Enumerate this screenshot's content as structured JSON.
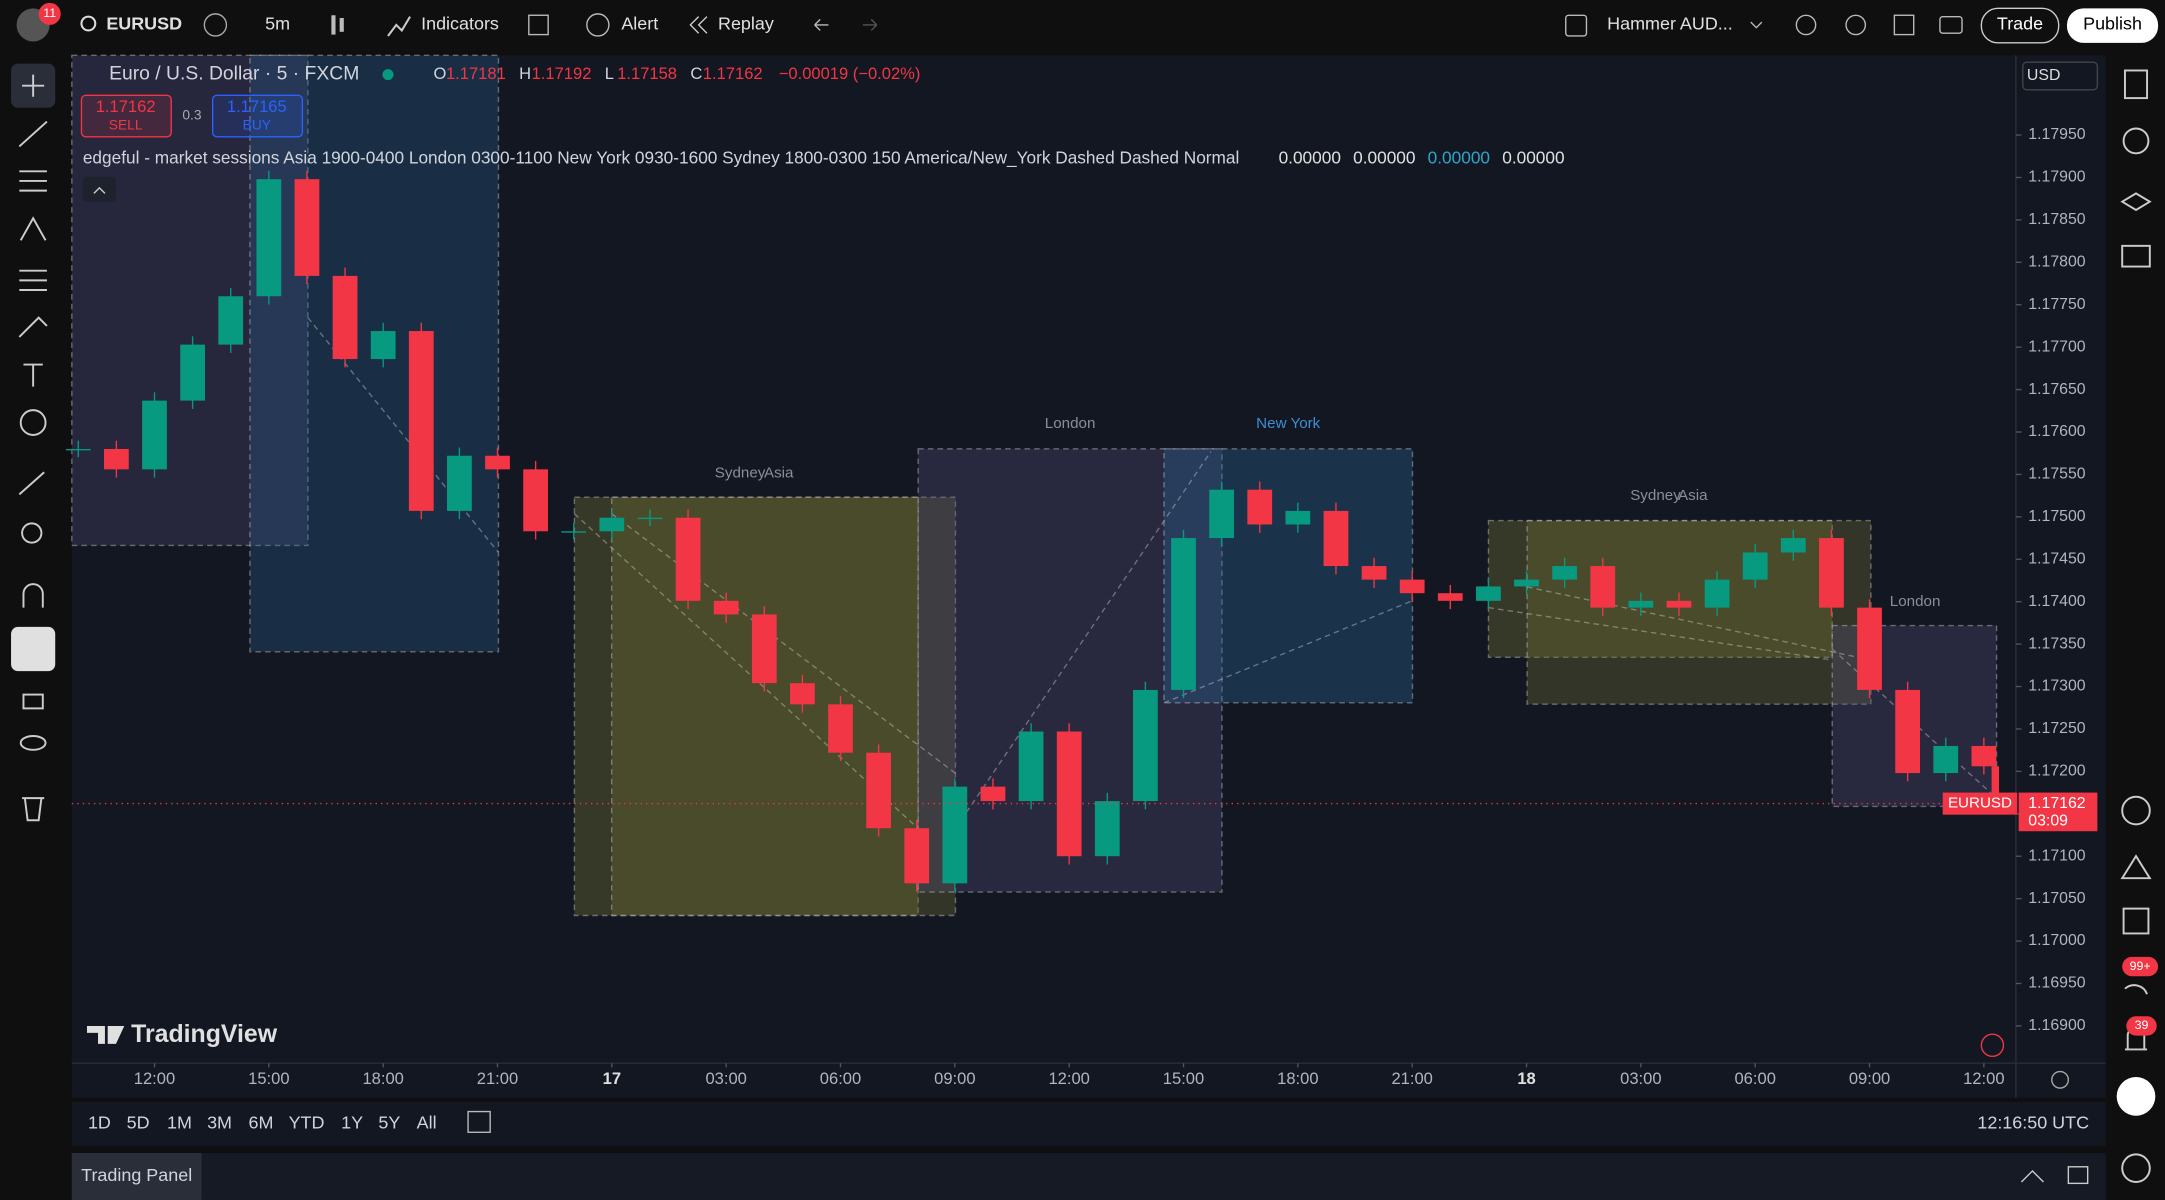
{
  "top_bar": {
    "badge": "11",
    "symbol": "EURUSD",
    "interval": "5m",
    "indicators": "Indicators",
    "alert": "Alert",
    "replay": "Replay",
    "layout": "Hammer AUD...",
    "trade": "Trade",
    "publish": "Publish"
  },
  "legend": {
    "title": "Euro / U.S. Dollar · 5 · FXCM",
    "o_label": "O",
    "open": "1.17181",
    "h_label": "H",
    "high": "1.17192",
    "l_label": "L",
    "low": "1.17158",
    "c_label": "C",
    "close": "1.17162",
    "change": "−0.00019 (−0.02%)"
  },
  "trade_box": {
    "sell_price": "1.17162",
    "sell": "SELL",
    "spread": "0.3",
    "buy_price": "1.17165",
    "buy": "BUY"
  },
  "indicator": {
    "text": "edgeful - market sessions Asia 1900-0400 London 0300-1100 New York 0930-1600 Sydney 1800-0300 150 America/New_York Dashed Dashed Normal",
    "values": [
      "0.00000",
      "0.00000",
      "0.00000",
      "0.00000"
    ]
  },
  "chart": {
    "type": "candlestick",
    "x": [
      10,
      11,
      12,
      13,
      14,
      15,
      16,
      17,
      18,
      19,
      20,
      21,
      22,
      23,
      24,
      25,
      26,
      27,
      28,
      29,
      30,
      31,
      32,
      33,
      34,
      35,
      36,
      37,
      38,
      39,
      40,
      41,
      42,
      43,
      44,
      45,
      46,
      47,
      48,
      49,
      50,
      51,
      52,
      53,
      54,
      55,
      56,
      57,
      58,
      59,
      60,
      60.3
    ],
    "close": [
      1.1758,
      1.17556,
      1.17637,
      1.17703,
      1.1776,
      1.17898,
      1.17784,
      1.17686,
      1.17719,
      1.17507,
      1.17572,
      1.17556,
      1.17483,
      1.17483,
      1.17499,
      1.17499,
      1.17401,
      1.17385,
      1.17304,
      1.17279,
      1.17222,
      1.17133,
      1.17068,
      1.17182,
      1.17165,
      1.17247,
      1.171,
      1.17165,
      1.17296,
      1.17475,
      1.17532,
      1.17491,
      1.17507,
      1.17442,
      1.17426,
      1.1741,
      1.17401,
      1.17418,
      1.17426,
      1.17442,
      1.17393,
      1.17401,
      1.17393,
      1.17426,
      1.17458,
      1.17475,
      1.17393,
      1.17296,
      1.17198,
      1.1723,
      1.17206,
      1.17162
    ],
    "xlim": [
      9.83,
      60.84
    ],
    "ylim": [
      1.16856,
      1.18044
    ],
    "yticks": [
      {
        "value": 1.169,
        "label": "1.16900"
      },
      {
        "value": 1.1695,
        "label": "1.16950"
      },
      {
        "value": 1.17,
        "label": "1.17000"
      },
      {
        "value": 1.1705,
        "label": "1.17050"
      },
      {
        "value": 1.171,
        "label": "1.17100"
      },
      {
        "value": 1.1715,
        "label": "1.17150"
      },
      {
        "value": 1.172,
        "label": "1.17200"
      },
      {
        "value": 1.1725,
        "label": "1.17250"
      },
      {
        "value": 1.173,
        "label": "1.17300"
      },
      {
        "value": 1.1735,
        "label": "1.17350"
      },
      {
        "value": 1.174,
        "label": "1.17400"
      },
      {
        "value": 1.1745,
        "label": "1.17450"
      },
      {
        "value": 1.175,
        "label": "1.17500"
      },
      {
        "value": 1.1755,
        "label": "1.17550"
      },
      {
        "value": 1.176,
        "label": "1.17600"
      },
      {
        "value": 1.1765,
        "label": "1.17650"
      },
      {
        "value": 1.177,
        "label": "1.17700"
      },
      {
        "value": 1.1775,
        "label": "1.17750"
      },
      {
        "value": 1.178,
        "label": "1.17800"
      },
      {
        "value": 1.1785,
        "label": "1.17850"
      },
      {
        "value": 1.179,
        "label": "1.17900"
      },
      {
        "value": 1.1795,
        "label": "1.17950"
      }
    ],
    "xticks": [
      {
        "value": 12,
        "label": "12:00"
      },
      {
        "value": 15,
        "label": "15:00"
      },
      {
        "value": 18,
        "label": "18:00"
      },
      {
        "value": 21,
        "label": "21:00"
      },
      {
        "value": 24,
        "label": "17"
      },
      {
        "value": 27,
        "label": "03:00"
      },
      {
        "value": 30,
        "label": "06:00"
      },
      {
        "value": 33,
        "label": "09:00"
      },
      {
        "value": 36,
        "label": "12:00"
      },
      {
        "value": 39,
        "label": "15:00"
      },
      {
        "value": 42,
        "label": "18:00"
      },
      {
        "value": 45,
        "label": "21:00"
      },
      {
        "value": 48,
        "label": "18"
      },
      {
        "value": 51,
        "label": "03:00"
      },
      {
        "value": 54,
        "label": "06:00"
      },
      {
        "value": 57,
        "label": "09:00"
      },
      {
        "value": 60,
        "label": "12:00"
      }
    ],
    "sessions": [
      "Sydney",
      "Asia",
      "London",
      "New York",
      "Sydney",
      "Asia",
      "London"
    ],
    "currency": "USD",
    "last_price_symbol": "EURUSD",
    "last_price": "1.17162",
    "countdown": "03:09",
    "colors": {
      "up": "#089981",
      "down": "#f23645"
    }
  },
  "watermark": "TradingView",
  "bottom_bar": {
    "ranges": [
      "1D",
      "5D",
      "1M",
      "3M",
      "6M",
      "YTD",
      "1Y",
      "5Y",
      "All"
    ],
    "clock": "12:16:50 UTC",
    "panel": "Trading Panel"
  },
  "badges": {
    "alerts": "99+",
    "notifications": "39"
  }
}
